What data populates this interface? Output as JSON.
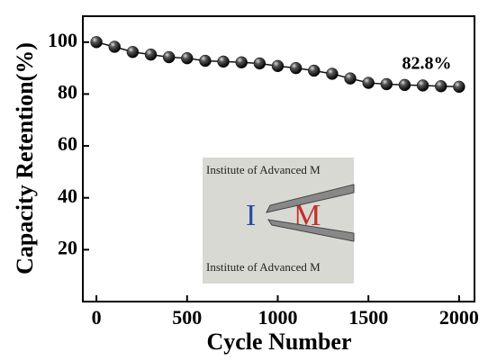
{
  "chart_data": {
    "type": "line",
    "x_label": "Cycle Number",
    "y_label": "Capacity Retention(%)",
    "annotation": "82.8%",
    "x": [
      0,
      100,
      200,
      300,
      400,
      500,
      600,
      700,
      800,
      900,
      1000,
      1100,
      1200,
      1300,
      1400,
      1500,
      1600,
      1700,
      1800,
      1900,
      2000
    ],
    "values": [
      100,
      98.2,
      96.2,
      95.2,
      94.2,
      93.8,
      92.8,
      92.5,
      92.2,
      91.8,
      90.8,
      90,
      89,
      87.8,
      86,
      84.3,
      83.8,
      83.5,
      83.3,
      83,
      82.8
    ],
    "color": "#111111",
    "xlim": [
      -75,
      2085
    ],
    "ylim": [
      0,
      110
    ],
    "xticks": [
      0,
      500,
      1000,
      1500,
      2000
    ],
    "yticks": [
      20,
      40,
      60,
      80,
      100
    ],
    "inset_texts": [
      "Institute of Advanced M",
      "I",
      "M",
      "Institute of Advanced M"
    ]
  }
}
